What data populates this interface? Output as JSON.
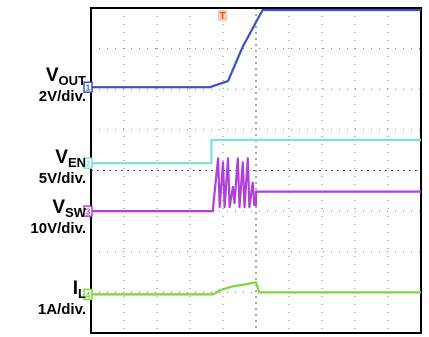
{
  "chart_data": {
    "type": "line",
    "title": "",
    "grid": true,
    "trigger_marker": "T",
    "x_divisions": 10,
    "y_divisions": 8,
    "series": [
      {
        "name_main": "V",
        "name_sub": "OUT",
        "scale": "2V/div.",
        "color": "#3a50c8",
        "ref_marker": "1",
        "x": [
          0,
          3.6,
          4.15,
          4.6,
          5.2,
          10
        ],
        "y": [
          6.05,
          6.05,
          6.2,
          7.05,
          7.95,
          7.95
        ]
      },
      {
        "name_main": "V",
        "name_sub": "EN",
        "scale": "5V/div.",
        "color": "#7de0d8",
        "ref_marker": "2",
        "x": [
          0,
          3.65,
          3.65,
          10
        ],
        "y": [
          4.18,
          4.18,
          4.75,
          4.75
        ]
      },
      {
        "name_main": "V",
        "name_sub": "SW",
        "scale": "10V/div.",
        "color": "#b040d8",
        "ref_marker": "3",
        "x": [
          0,
          3.7,
          3.7,
          3.85,
          3.9,
          4.0,
          4.05,
          4.15,
          4.2,
          4.3,
          4.35,
          4.45,
          4.5,
          4.6,
          4.65,
          4.75,
          4.8,
          4.9,
          4.95,
          5.0,
          5.0,
          10
        ],
        "y": [
          3.0,
          3.0,
          3.1,
          4.3,
          3.1,
          4.2,
          3.1,
          4.3,
          3.1,
          3.6,
          3.2,
          4.3,
          3.1,
          4.2,
          3.1,
          4.3,
          3.1,
          3.7,
          3.15,
          3.15,
          3.48,
          3.48
        ]
      },
      {
        "name_main": "I",
        "name_sub": "L",
        "scale": "1A/div.",
        "color": "#7ad83a",
        "ref_marker": "4",
        "x": [
          0,
          3.7,
          3.9,
          4.3,
          4.7,
          5.0,
          5.1,
          10
        ],
        "y": [
          0.95,
          0.95,
          1.05,
          1.15,
          1.2,
          1.25,
          1.0,
          1.0
        ]
      }
    ]
  }
}
